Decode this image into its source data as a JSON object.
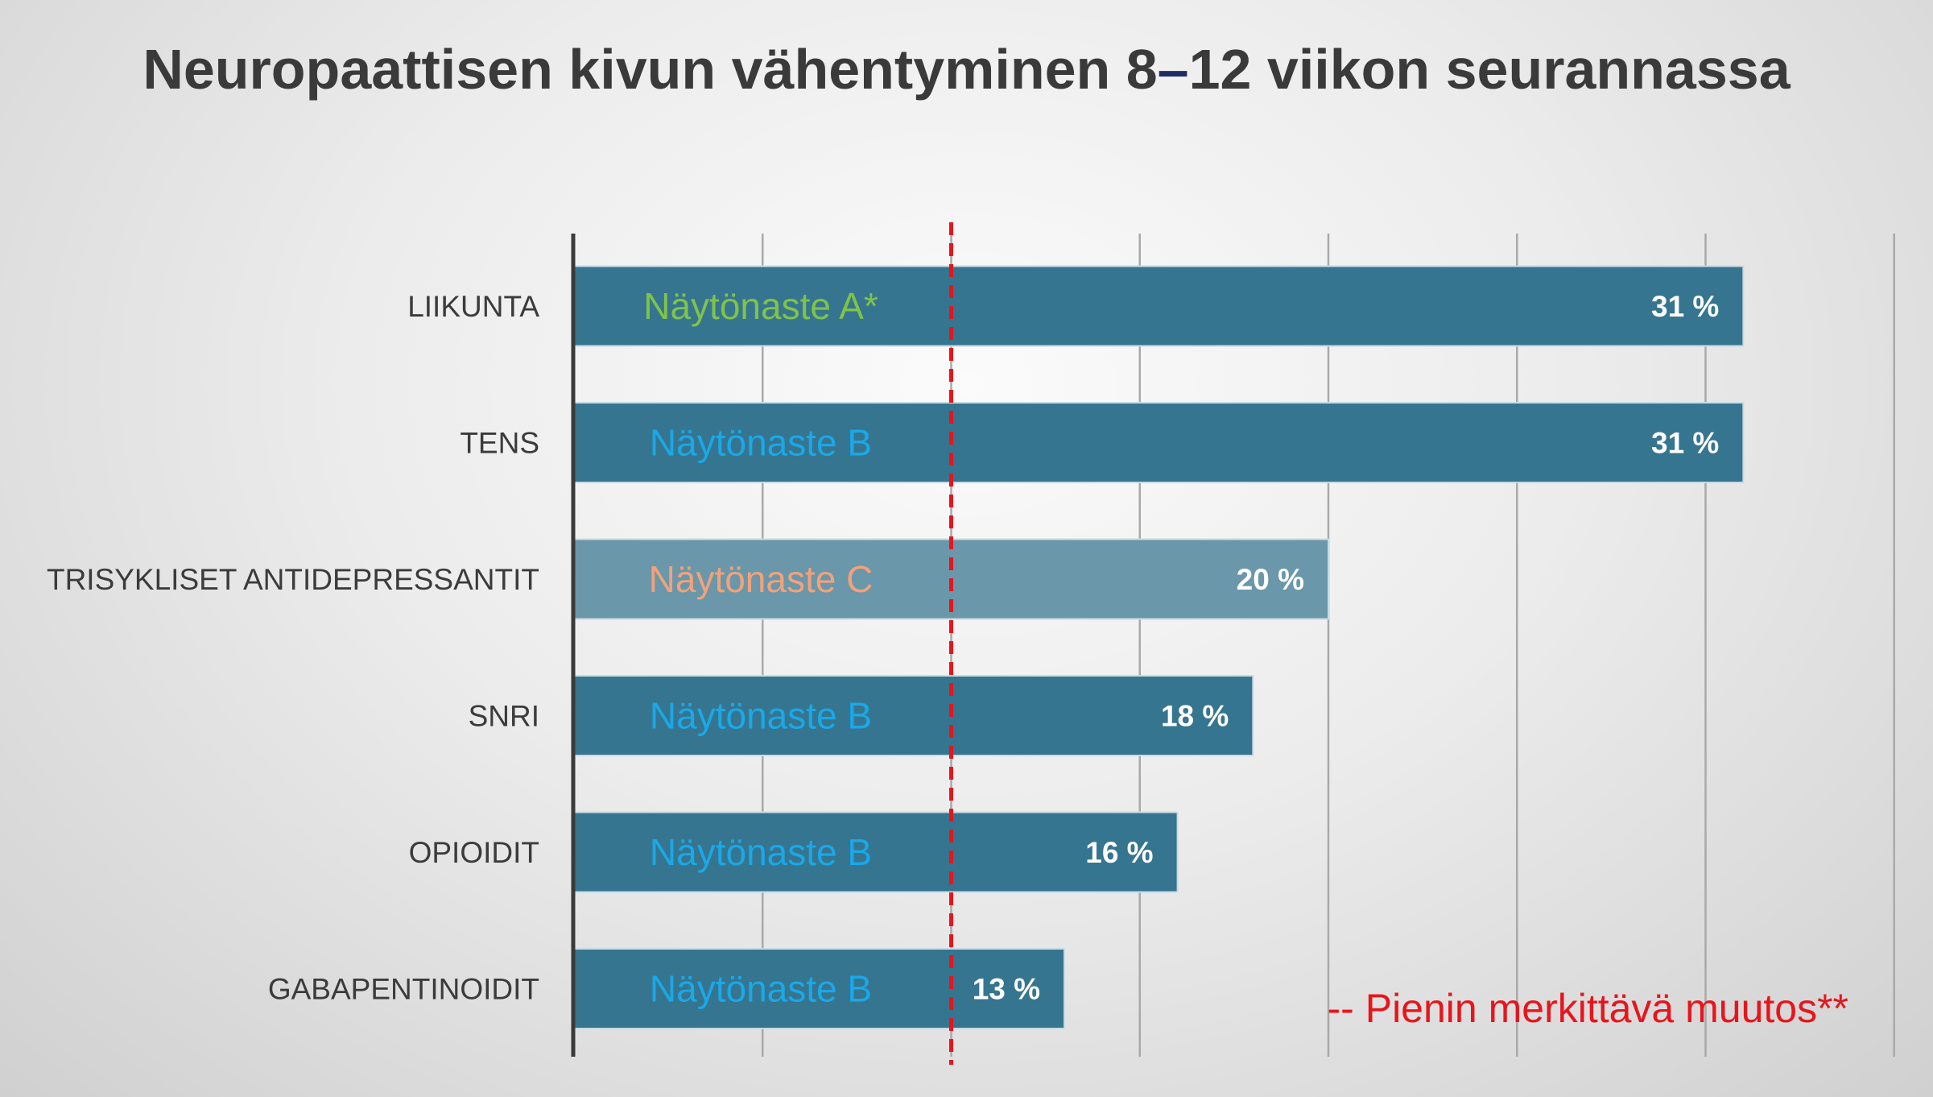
{
  "chart_data": {
    "type": "bar",
    "orientation": "horizontal",
    "title_parts": [
      "Neuropaattisen kivun vähentyminen 8",
      "–",
      "12 viikon seurannassa"
    ],
    "categories": [
      "LIIKUNTA",
      "TENS",
      "TRISYKLISET ANTIDEPRESSANTIT",
      "SNRI",
      "OPIOIDIT",
      "GABAPENTINOIDIT"
    ],
    "values": [
      31,
      31,
      20,
      18,
      16,
      13
    ],
    "value_labels": [
      "31 %",
      "31 %",
      "20 %",
      "18 %",
      "16 %",
      "13 %"
    ],
    "evidence_labels": [
      "Näytönaste A*",
      "Näytönaste B",
      "Näytönaste C",
      "Näytönaste B",
      "Näytönaste B",
      "Näytönaste B"
    ],
    "evidence_colors": [
      "#7fc34a",
      "#1aa8e8",
      "#f2a27a",
      "#1aa8e8",
      "#1aa8e8",
      "#1aa8e8"
    ],
    "bar_colors": [
      "#36758f",
      "#36758f",
      "#6a97aa",
      "#36758f",
      "#36758f",
      "#36758f"
    ],
    "xlim": [
      0,
      35
    ],
    "x_gridlines": [
      0,
      5,
      10,
      15,
      20,
      25,
      30,
      35
    ],
    "grid": true,
    "reference_line": {
      "value": 10,
      "style": "dashed",
      "color": "#e8141c",
      "label": "-- Pienin merkittävä muutos**"
    },
    "xlabel": "",
    "ylabel": ""
  }
}
